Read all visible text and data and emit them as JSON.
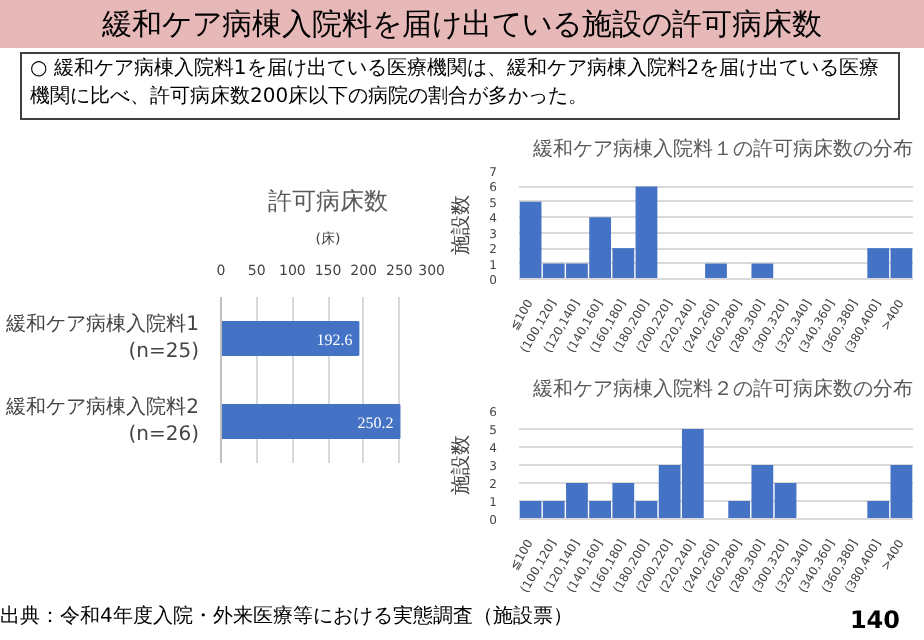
{
  "chart_data": [
    {
      "type": "other",
      "title": "緩和ケア病棟入院料を届け出ている施設の許可病床数",
      "subtitle": "○ 緩和ケア病棟入院料1を届け出ている医療機関は、緩和ケア病棟入院料2を届け出ている医療機関に比べ、許可病床数200床以下の病院の割合が多かった。",
      "annotations": [
        "出典：令和4年度入院・外来医療等における実態調査（施設票）",
        "140"
      ]
    },
    {
      "type": "bar",
      "orientation": "horizontal",
      "title": "許可病床数",
      "xlabel": "(床)",
      "categories": [
        "緩和ケア病棟入院料1(n=25)",
        "緩和ケア病棟入院料2(n=26)"
      ],
      "values": [
        192.6,
        250.2
      ],
      "color": "#4472c4",
      "xlim": [
        0,
        300
      ],
      "xticks": [
        0,
        50,
        100,
        150,
        200,
        250,
        300
      ],
      "grid": "x",
      "data_labels": true
    },
    {
      "type": "bar",
      "title": "緩和ケア病棟入院料１の許可病床数の分布",
      "ylabel": "施設数",
      "categories": [
        "≦100",
        "(100,120]",
        "(120,140]",
        "(140,160]",
        "(160,180]",
        "(180,200]",
        "(200,220]",
        "(220,240]",
        "(240,260]",
        "(260,280]",
        "(280,300]",
        "(300,320]",
        "(320,340]",
        "(340,360]",
        "(360,380]",
        "(380,400]",
        ">400"
      ],
      "values": [
        5,
        1,
        1,
        4,
        2,
        6,
        0,
        0,
        1,
        0,
        1,
        0,
        0,
        0,
        0,
        2,
        2
      ],
      "color": "#4472c4",
      "ylim": [
        0,
        7
      ],
      "yticks": [
        0,
        1,
        2,
        3,
        4,
        5,
        6,
        7
      ],
      "grid": "y"
    },
    {
      "type": "bar",
      "title": "緩和ケア病棟入院料２の許可病床数の分布",
      "ylabel": "施設数",
      "categories": [
        "≦100",
        "(100,120]",
        "(120,140]",
        "(140,160]",
        "(160,180]",
        "(180,200]",
        "(200,220]",
        "(220,240]",
        "(240,260]",
        "(260,280]",
        "(280,300]",
        "(300,320]",
        "(320,340]",
        "(340,360]",
        "(360,380]",
        "(380,400]",
        ">400"
      ],
      "values": [
        1,
        1,
        2,
        1,
        2,
        1,
        3,
        5,
        0,
        1,
        3,
        2,
        0,
        0,
        0,
        1,
        3
      ],
      "color": "#4472c4",
      "ylim": [
        0,
        6
      ],
      "yticks": [
        0,
        1,
        2,
        3,
        4,
        5,
        6
      ],
      "grid": "y"
    }
  ]
}
